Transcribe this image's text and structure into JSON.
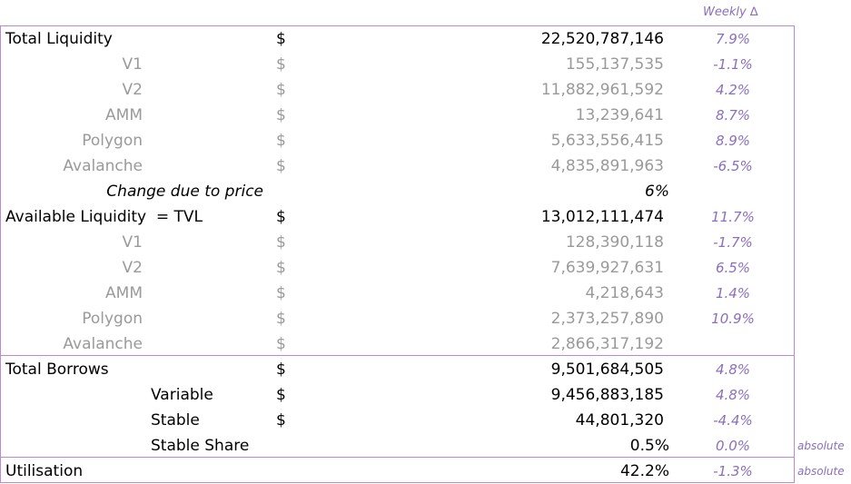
{
  "header": {
    "weekly_change_label": "Weekly ∆"
  },
  "rows": [
    {
      "key": "total_liquidity",
      "label": "Total Liquidity",
      "currency": "$",
      "value": "22,520,787,146",
      "change": "7.9%"
    },
    {
      "key": "tl_v1",
      "label": "V1",
      "currency": "$",
      "value": "155,137,535",
      "change": "-1.1%"
    },
    {
      "key": "tl_v2",
      "label": "V2",
      "currency": "$",
      "value": "11,882,961,592",
      "change": "4.2%"
    },
    {
      "key": "tl_amm",
      "label": "AMM",
      "currency": "$",
      "value": "13,239,641",
      "change": "8.7%"
    },
    {
      "key": "tl_polygon",
      "label": "Polygon",
      "currency": "$",
      "value": "5,633,556,415",
      "change": "8.9%"
    },
    {
      "key": "tl_avalanche",
      "label": "Avalanche",
      "currency": "$",
      "value": "4,835,891,963",
      "change": "-6.5%"
    },
    {
      "key": "change_due_to_price",
      "label": "Change due to price",
      "value": "6%"
    },
    {
      "key": "available_liquidity",
      "label": "Available Liquidity  = TVL",
      "currency": "$",
      "value": "13,012,111,474",
      "change": "11.7%"
    },
    {
      "key": "al_v1",
      "label": "V1",
      "currency": "$",
      "value": "128,390,118",
      "change": "-1.7%"
    },
    {
      "key": "al_v2",
      "label": "V2",
      "currency": "$",
      "value": "7,639,927,631",
      "change": "6.5%"
    },
    {
      "key": "al_amm",
      "label": "AMM",
      "currency": "$",
      "value": "4,218,643",
      "change": "1.4%"
    },
    {
      "key": "al_polygon",
      "label": "Polygon",
      "currency": "$",
      "value": "2,373,257,890",
      "change": "10.9%"
    },
    {
      "key": "al_avalanche",
      "label": "Avalanche",
      "currency": "$",
      "value": "2,866,317,192",
      "change": ""
    },
    {
      "key": "total_borrows",
      "label": "Total Borrows",
      "currency": "$",
      "value": "9,501,684,505",
      "change": "4.8%"
    },
    {
      "key": "tb_variable",
      "label": "Variable",
      "currency": "$",
      "value": "9,456,883,185",
      "change": "4.8%"
    },
    {
      "key": "tb_stable",
      "label": "Stable",
      "currency": "$",
      "value": "44,801,320",
      "change": "-4.4%"
    },
    {
      "key": "tb_stable_share",
      "label": "Stable Share",
      "value": "0.5%",
      "change": "0.0%",
      "note": "absolute"
    },
    {
      "key": "utilisation",
      "label": "Utilisation",
      "value": "42.2%",
      "change": "-1.3%",
      "note": "absolute"
    }
  ]
}
